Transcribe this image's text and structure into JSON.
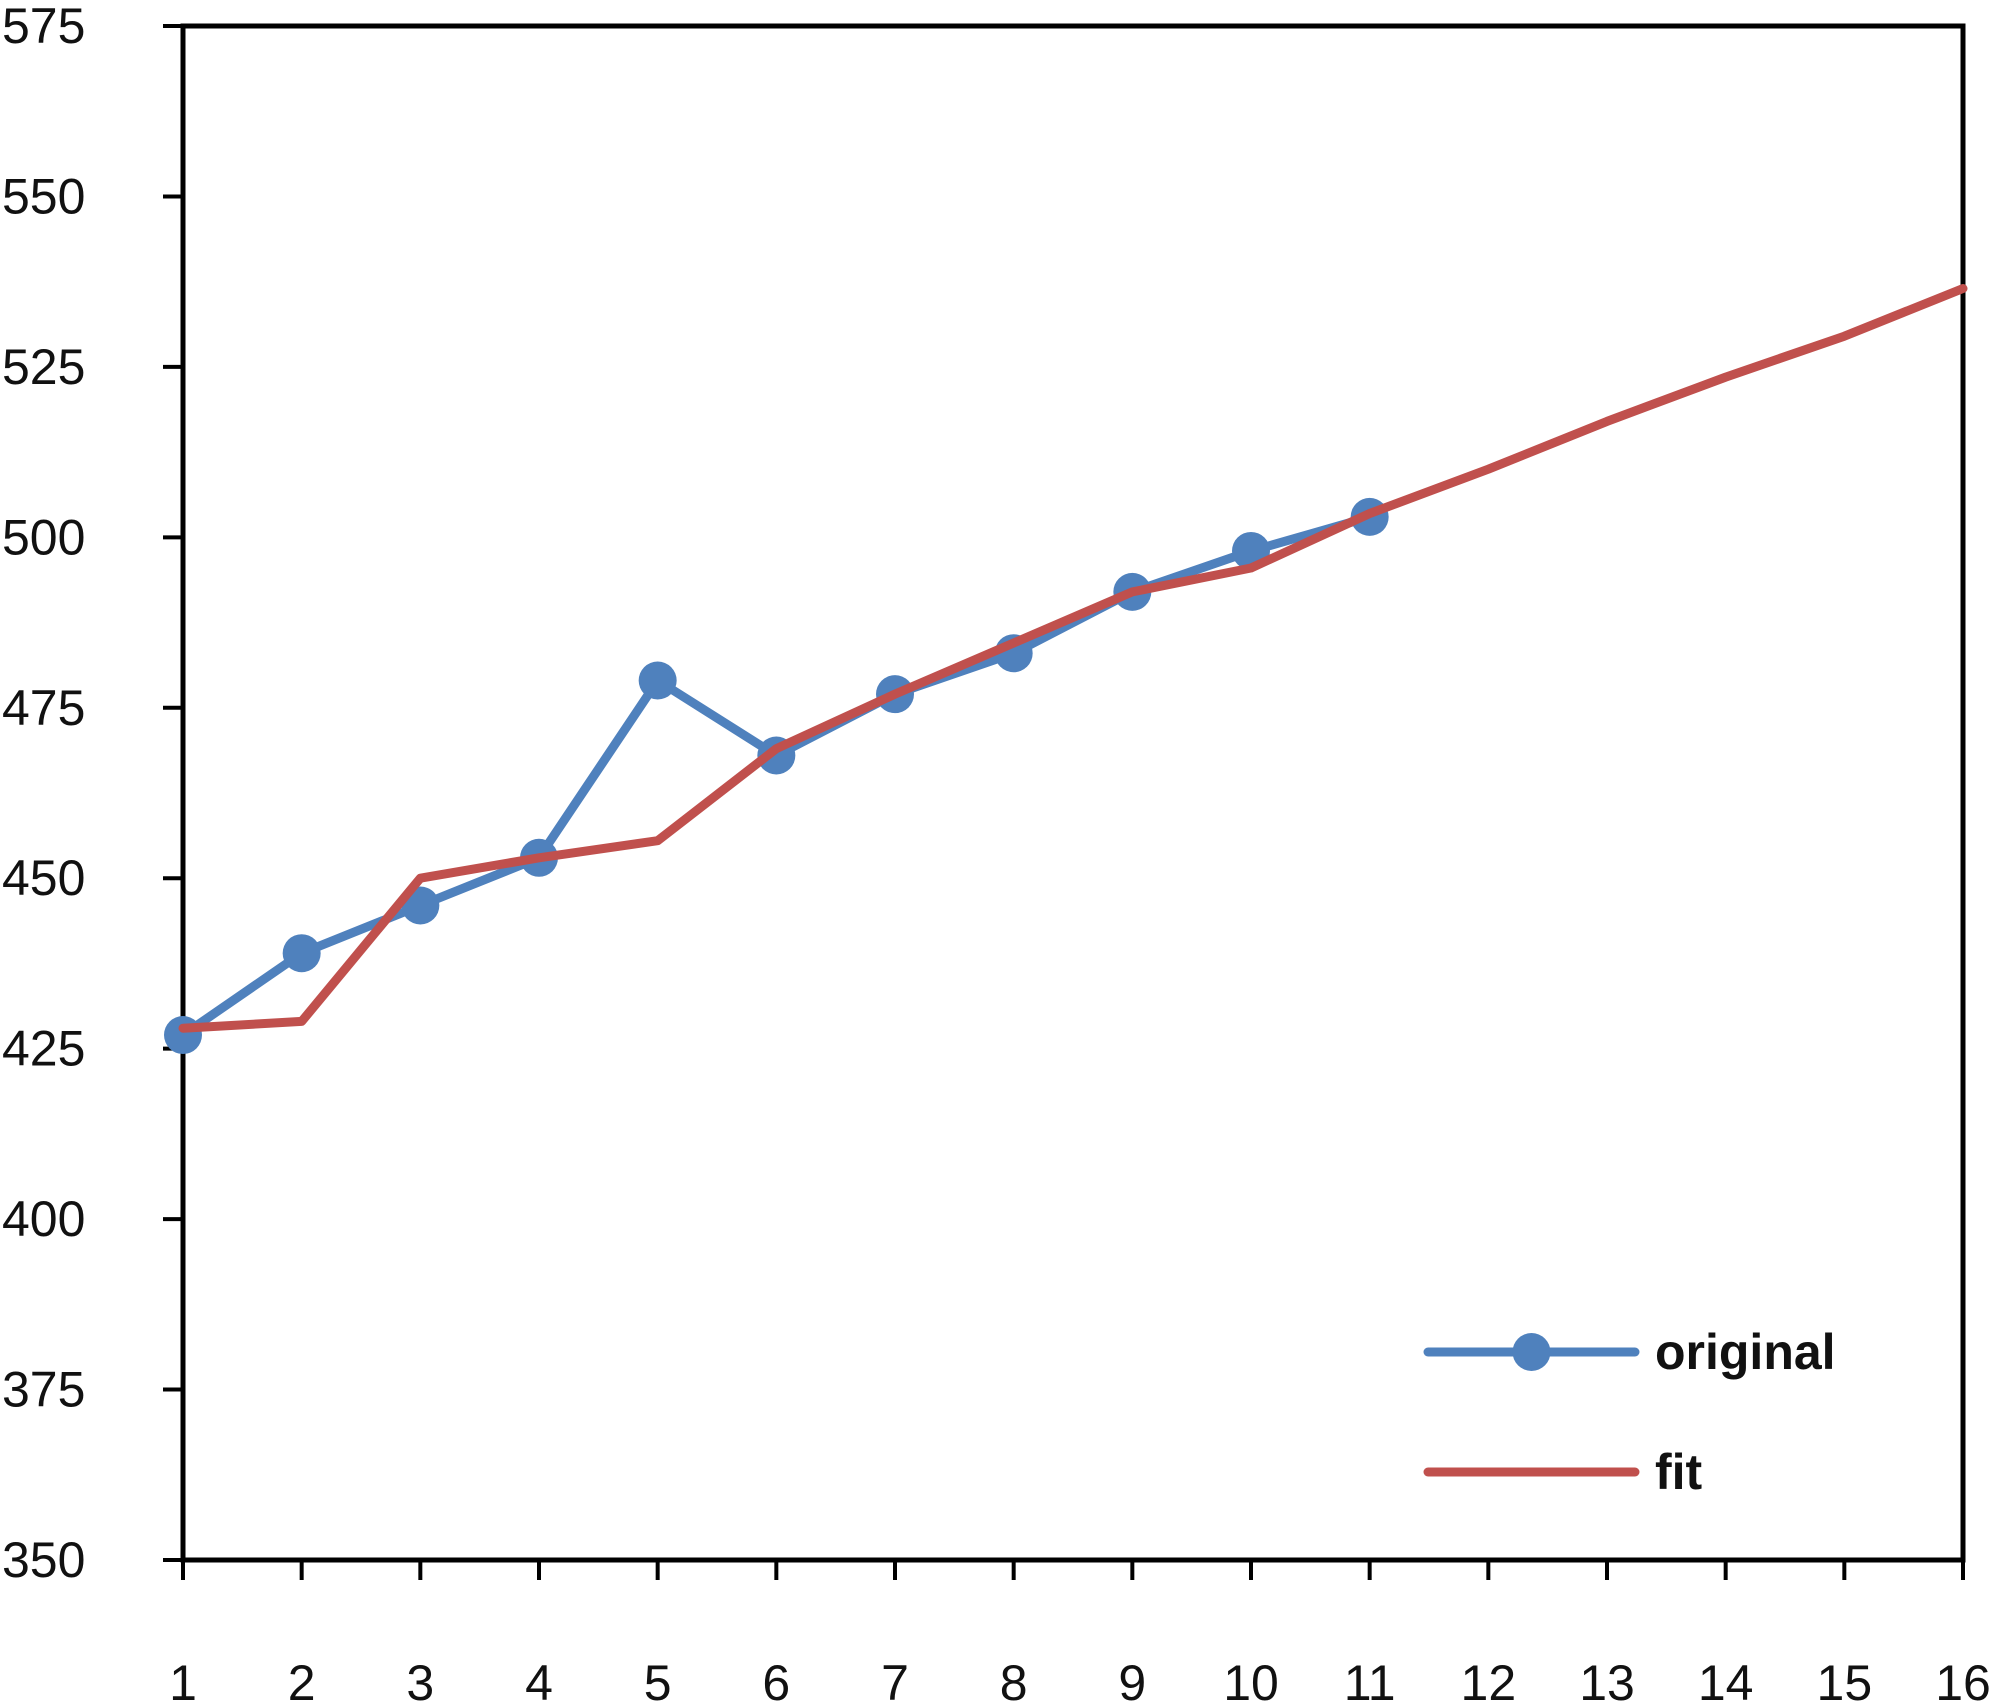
{
  "chart_data": {
    "type": "line",
    "title": "",
    "xlabel": "",
    "ylabel": "",
    "x": [
      1,
      2,
      3,
      4,
      5,
      6,
      7,
      8,
      9,
      10,
      11,
      12,
      13,
      14,
      15,
      16
    ],
    "x_ticks": [
      "1",
      "2",
      "3",
      "4",
      "5",
      "6",
      "7",
      "8",
      "9",
      "10",
      "11",
      "12",
      "13",
      "14",
      "15",
      "16"
    ],
    "xlim": [
      1,
      16
    ],
    "ylim": [
      350,
      575
    ],
    "y_ticks": [
      "350",
      "375",
      "400",
      "425",
      "450",
      "475",
      "500",
      "525",
      "550",
      "575"
    ],
    "grid": false,
    "legend_position": "bottom-right",
    "series": [
      {
        "name": "original",
        "color": "#4f81bd",
        "marker": "circle",
        "x": [
          1,
          2,
          3,
          4,
          5,
          6,
          7,
          8,
          9,
          10,
          11
        ],
        "values": [
          427,
          439,
          446,
          453,
          479,
          468,
          477,
          483,
          492,
          498,
          503
        ]
      },
      {
        "name": "fit",
        "color": "#c0504d",
        "marker": "none",
        "x": [
          1,
          2,
          3,
          4,
          5,
          6,
          7,
          8,
          9,
          10,
          11,
          12,
          13,
          14,
          15,
          16
        ],
        "values": [
          428,
          429,
          450,
          453,
          455.5,
          469,
          477,
          484.5,
          492,
          495.5,
          503.5,
          510,
          517,
          523.5,
          529.5,
          536.5
        ]
      }
    ]
  }
}
